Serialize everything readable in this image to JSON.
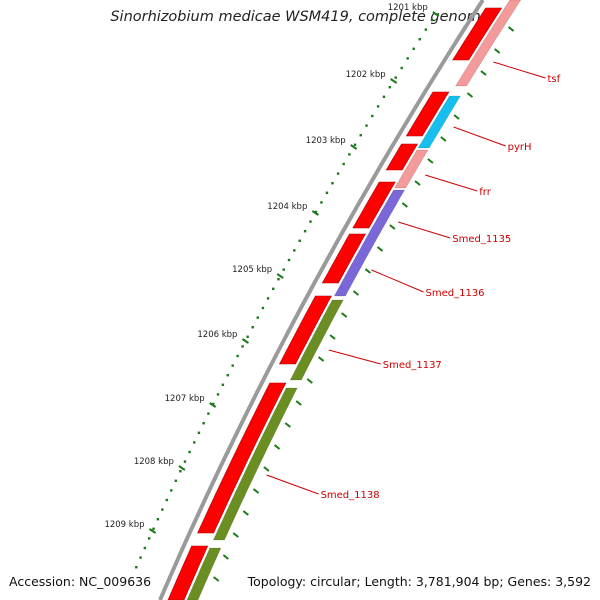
{
  "title": "Sinorhizobium medicae WSM419, complete genome",
  "accession": "Accession: NC_009636",
  "summary": "Topology: circular; Length: 3,781,904 bp; Genes: 3,592",
  "colors": {
    "backbone": "#8a8a8a",
    "cds_forward": "#ff0000",
    "tick_green": "#1a7a1a",
    "label_red": "#cc0000",
    "pink": "#f59a9a",
    "cyan": "#17bfef",
    "purple": "#7b68d8",
    "olive": "#6b8e23"
  },
  "scale": {
    "unit": "kbp",
    "labels": [
      {
        "kbp": 1201,
        "text": "1201 kbp"
      },
      {
        "kbp": 1202,
        "text": "1202 kbp"
      },
      {
        "kbp": 1203,
        "text": "1203 kbp"
      },
      {
        "kbp": 1204,
        "text": "1204 kbp"
      },
      {
        "kbp": 1205,
        "text": "1205 kbp"
      },
      {
        "kbp": 1206,
        "text": "1206 kbp"
      },
      {
        "kbp": 1207,
        "text": "1207 kbp"
      },
      {
        "kbp": 1208,
        "text": "1208 kbp"
      },
      {
        "kbp": 1209,
        "text": "1209 kbp"
      }
    ]
  },
  "genes": [
    {
      "name": "tsf",
      "color": "pink"
    },
    {
      "name": "pyrH",
      "color": "cyan"
    },
    {
      "name": "frr",
      "color": "pink"
    },
    {
      "name": "Smed_1135",
      "color": "purple"
    },
    {
      "name": "Smed_1136",
      "color": "purple"
    },
    {
      "name": "Smed_1137",
      "color": "olive"
    },
    {
      "name": "Smed_1138",
      "color": "olive"
    }
  ]
}
